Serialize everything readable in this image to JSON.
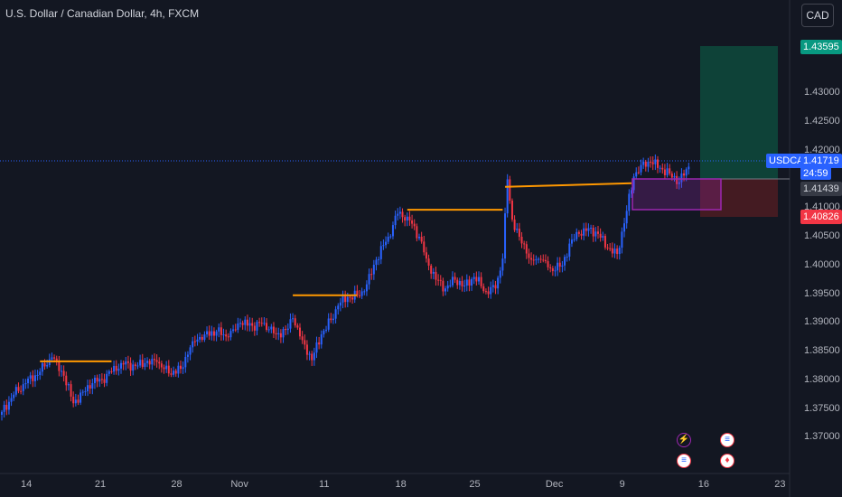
{
  "header": {
    "title": "U.S. Dollar / Canadian Dollar, 4h, FXCM",
    "currency_button": "CAD"
  },
  "price_axis": {
    "ticks": [
      "1.43000",
      "1.42500",
      "1.42000",
      "1.41000",
      "1.40500",
      "1.40000",
      "1.39500",
      "1.39000",
      "1.38500",
      "1.38000",
      "1.37500",
      "1.37000"
    ],
    "labels": {
      "target": "1.43595",
      "symbol": "USDCAD",
      "last": "1.41719",
      "countdown": "24:59",
      "entry": "1.41439",
      "stop": "1.40826"
    }
  },
  "time_axis": {
    "ticks": [
      "14",
      "21",
      "28",
      "Nov",
      "11",
      "18",
      "25",
      "Dec",
      "9",
      "16",
      "23"
    ]
  },
  "colors": {
    "background": "#131722",
    "up": "#2962ff",
    "down": "#f23645",
    "orange_lines": "#ff9800",
    "target_zone": "#0e4a3c",
    "stop_zone": "#4a1c22",
    "purple_box": "#9c27b0",
    "symbol_tag": "#2962ff",
    "target_tag": "#089981",
    "stop_tag": "#f23645"
  },
  "chart_data": {
    "type": "candlestick",
    "symbol": "USDCAD",
    "interval": "4h",
    "source": "FXCM",
    "y_range": [
      1.3655,
      1.4382
    ],
    "close_path": [
      [
        0,
        1.3745
      ],
      [
        5,
        1.3775
      ],
      [
        10,
        1.3795
      ],
      [
        16,
        1.3815
      ],
      [
        21,
        1.384
      ],
      [
        26,
        1.3808
      ],
      [
        30,
        1.376
      ],
      [
        34,
        1.378
      ],
      [
        38,
        1.3795
      ],
      [
        42,
        1.3802
      ],
      [
        46,
        1.3815
      ],
      [
        50,
        1.383
      ],
      [
        56,
        1.3825
      ],
      [
        60,
        1.383
      ],
      [
        65,
        1.3832
      ],
      [
        70,
        1.3812
      ],
      [
        75,
        1.382
      ],
      [
        80,
        1.3868
      ],
      [
        85,
        1.388
      ],
      [
        90,
        1.3885
      ],
      [
        95,
        1.3875
      ],
      [
        100,
        1.39
      ],
      [
        105,
        1.3895
      ],
      [
        110,
        1.39
      ],
      [
        115,
        1.388
      ],
      [
        120,
        1.389
      ],
      [
        122,
        1.3908
      ],
      [
        126,
        1.387
      ],
      [
        130,
        1.3835
      ],
      [
        134,
        1.388
      ],
      [
        138,
        1.3905
      ],
      [
        141,
        1.393
      ],
      [
        145,
        1.3945
      ],
      [
        149,
        1.3948
      ],
      [
        152,
        1.3955
      ],
      [
        157,
        1.401
      ],
      [
        162,
        1.405
      ],
      [
        166,
        1.409
      ],
      [
        170,
        1.4085
      ],
      [
        175,
        1.405
      ],
      [
        178,
        1.4012
      ],
      [
        182,
        1.3975
      ],
      [
        186,
        1.396
      ],
      [
        190,
        1.3975
      ],
      [
        194,
        1.3965
      ],
      [
        198,
        1.398
      ],
      [
        203,
        1.3955
      ],
      [
        207,
        1.396
      ],
      [
        210,
        1.4012
      ],
      [
        212,
        1.415
      ],
      [
        214,
        1.408
      ],
      [
        217,
        1.405
      ],
      [
        222,
        1.401
      ],
      [
        226,
        1.401
      ],
      [
        230,
        1.3995
      ],
      [
        235,
        1.4
      ],
      [
        238,
        1.4038
      ],
      [
        242,
        1.4055
      ],
      [
        246,
        1.4065
      ],
      [
        250,
        1.4055
      ],
      [
        254,
        1.403
      ],
      [
        258,
        1.402
      ],
      [
        262,
        1.4095
      ],
      [
        265,
        1.4155
      ],
      [
        268,
        1.4175
      ],
      [
        272,
        1.418
      ],
      [
        276,
        1.417
      ],
      [
        280,
        1.416
      ],
      [
        284,
        1.4145
      ],
      [
        288,
        1.4172
      ]
    ],
    "marked_levels": [
      {
        "from": 16,
        "to": 46,
        "price": 1.3833
      },
      {
        "from": 122,
        "to": 149,
        "price": 1.3948
      },
      {
        "from": 170,
        "to": 210,
        "price": 1.4097
      },
      {
        "from": 211,
        "to": 264,
        "price": 1.414
      }
    ],
    "position": {
      "side": "long",
      "entry": 1.41439,
      "target": 1.43595,
      "stop": 1.40826
    },
    "last_price": 1.41719
  }
}
